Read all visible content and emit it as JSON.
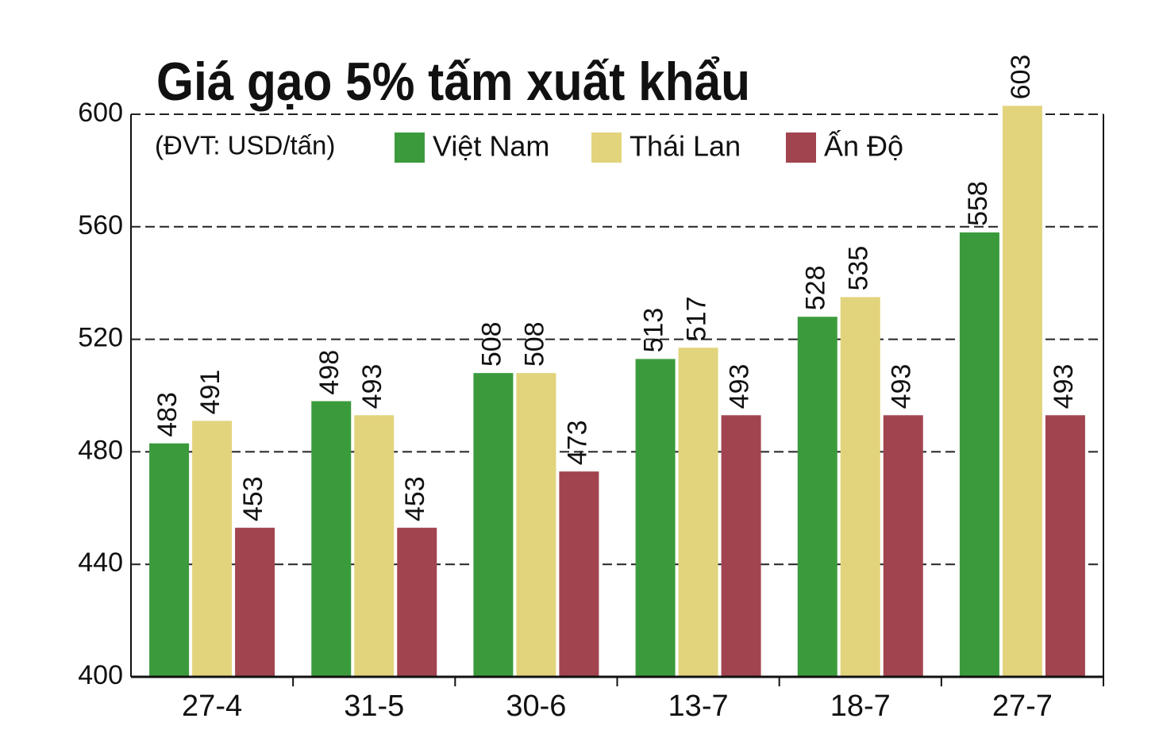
{
  "chart_data": {
    "type": "bar",
    "title": "Giá gạo 5% tấm xuất khẩu",
    "subtitle": "(ĐVT: USD/tấn)",
    "categories": [
      "27-4",
      "31-5",
      "30-6",
      "13-7",
      "18-7",
      "27-7"
    ],
    "series": [
      {
        "name": "Việt Nam",
        "color": "#3b9b3c",
        "values": [
          483,
          498,
          508,
          513,
          528,
          558
        ]
      },
      {
        "name": "Thái Lan",
        "color": "#e2d47c",
        "values": [
          491,
          493,
          508,
          517,
          535,
          603
        ]
      },
      {
        "name": "Ấn Độ",
        "color": "#a1444f",
        "values": [
          453,
          453,
          473,
          493,
          493,
          493
        ]
      }
    ],
    "ylim": [
      400,
      600
    ],
    "yticks": [
      400,
      440,
      480,
      520,
      560,
      600
    ],
    "grid": true
  }
}
